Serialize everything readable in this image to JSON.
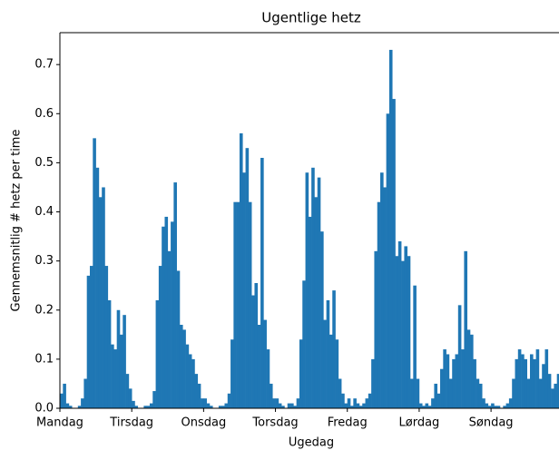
{
  "chart_data": {
    "type": "bar",
    "title": "Ugentlige hetz",
    "xlabel": "Ugedag",
    "ylabel": "Gennemsnitlig # hetz per time",
    "color": "#1f77b4",
    "x": [
      0,
      1,
      2,
      3,
      4,
      5,
      6,
      7,
      8,
      9,
      10,
      11,
      12,
      13,
      14,
      15,
      16,
      17,
      18,
      19,
      20,
      21,
      22,
      23,
      24,
      25,
      26,
      27,
      28,
      29,
      30,
      31,
      32,
      33,
      34,
      35,
      36,
      37,
      38,
      39,
      40,
      41,
      42,
      43,
      44,
      45,
      46,
      47,
      48,
      49,
      50,
      51,
      52,
      53,
      54,
      55,
      56,
      57,
      58,
      59,
      60,
      61,
      62,
      63,
      64,
      65,
      66,
      67,
      68,
      69,
      70,
      71,
      72,
      73,
      74,
      75,
      76,
      77,
      78,
      79,
      80,
      81,
      82,
      83,
      84,
      85,
      86,
      87,
      88,
      89,
      90,
      91,
      92,
      93,
      94,
      95,
      96,
      97,
      98,
      99,
      100,
      101,
      102,
      103,
      104,
      105,
      106,
      107,
      108,
      109,
      110,
      111,
      112,
      113,
      114,
      115,
      116,
      117,
      118,
      119,
      120,
      121,
      122,
      123,
      124,
      125,
      126,
      127,
      128,
      129,
      130,
      131,
      132,
      133,
      134,
      135,
      136,
      137,
      138,
      139,
      140,
      141,
      142,
      143,
      144,
      145,
      146,
      147,
      148,
      149,
      150,
      151,
      152,
      153,
      154,
      155,
      156,
      157,
      158,
      159,
      160,
      161,
      162,
      163,
      164,
      165,
      166,
      167
    ],
    "values": [
      0.03,
      0.05,
      0.01,
      0.005,
      0,
      0,
      0.005,
      0.02,
      0.06,
      0.27,
      0.29,
      0.55,
      0.49,
      0.43,
      0.45,
      0.29,
      0.22,
      0.13,
      0.12,
      0.2,
      0.15,
      0.19,
      0.07,
      0.04,
      0.015,
      0.005,
      0,
      0,
      0.005,
      0.005,
      0.01,
      0.035,
      0.22,
      0.29,
      0.37,
      0.39,
      0.32,
      0.38,
      0.46,
      0.28,
      0.17,
      0.16,
      0.13,
      0.11,
      0.1,
      0.07,
      0.05,
      0.02,
      0.02,
      0.01,
      0.005,
      0,
      0,
      0.005,
      0.005,
      0.01,
      0.03,
      0.14,
      0.42,
      0.42,
      0.56,
      0.48,
      0.53,
      0.42,
      0.23,
      0.255,
      0.17,
      0.51,
      0.18,
      0.12,
      0.05,
      0.02,
      0.02,
      0.01,
      0.005,
      0,
      0.01,
      0.01,
      0.005,
      0.02,
      0.14,
      0.26,
      0.48,
      0.39,
      0.49,
      0.43,
      0.47,
      0.36,
      0.18,
      0.22,
      0.15,
      0.24,
      0.14,
      0.06,
      0.03,
      0.01,
      0.02,
      0.005,
      0.02,
      0.01,
      0.005,
      0.01,
      0.02,
      0.03,
      0.1,
      0.32,
      0.42,
      0.48,
      0.45,
      0.6,
      0.73,
      0.63,
      0.31,
      0.34,
      0.3,
      0.33,
      0.31,
      0.06,
      0.25,
      0.06,
      0.01,
      0.005,
      0.01,
      0.005,
      0.02,
      0.05,
      0.03,
      0.08,
      0.12,
      0.11,
      0.06,
      0.1,
      0.11,
      0.21,
      0.12,
      0.32,
      0.16,
      0.15,
      0.1,
      0.06,
      0.05,
      0.02,
      0.01,
      0.005,
      0.01,
      0.005,
      0.005,
      0,
      0.005,
      0.01,
      0.02,
      0.06,
      0.1,
      0.12,
      0.11,
      0.1,
      0.06,
      0.11,
      0.1,
      0.12,
      0.06,
      0.09,
      0.12,
      0.07,
      0.04,
      0.05,
      0.07,
      0.07
    ],
    "xlim": [
      0,
      166.7
    ],
    "xticks": [
      {
        "value": 0,
        "label": "Mandag"
      },
      {
        "value": 24,
        "label": "Tirsdag"
      },
      {
        "value": 48,
        "label": "Onsdag"
      },
      {
        "value": 72,
        "label": "Torsdag"
      },
      {
        "value": 96,
        "label": "Fredag"
      },
      {
        "value": 120,
        "label": "Lørdag"
      },
      {
        "value": 144,
        "label": "Søndag"
      }
    ],
    "ylim": [
      0,
      0.765
    ],
    "yticks": [
      {
        "value": 0,
        "label": "0.0"
      },
      0.1,
      0.2,
      0.3,
      0.4,
      0.5,
      0.6,
      0.7
    ]
  }
}
